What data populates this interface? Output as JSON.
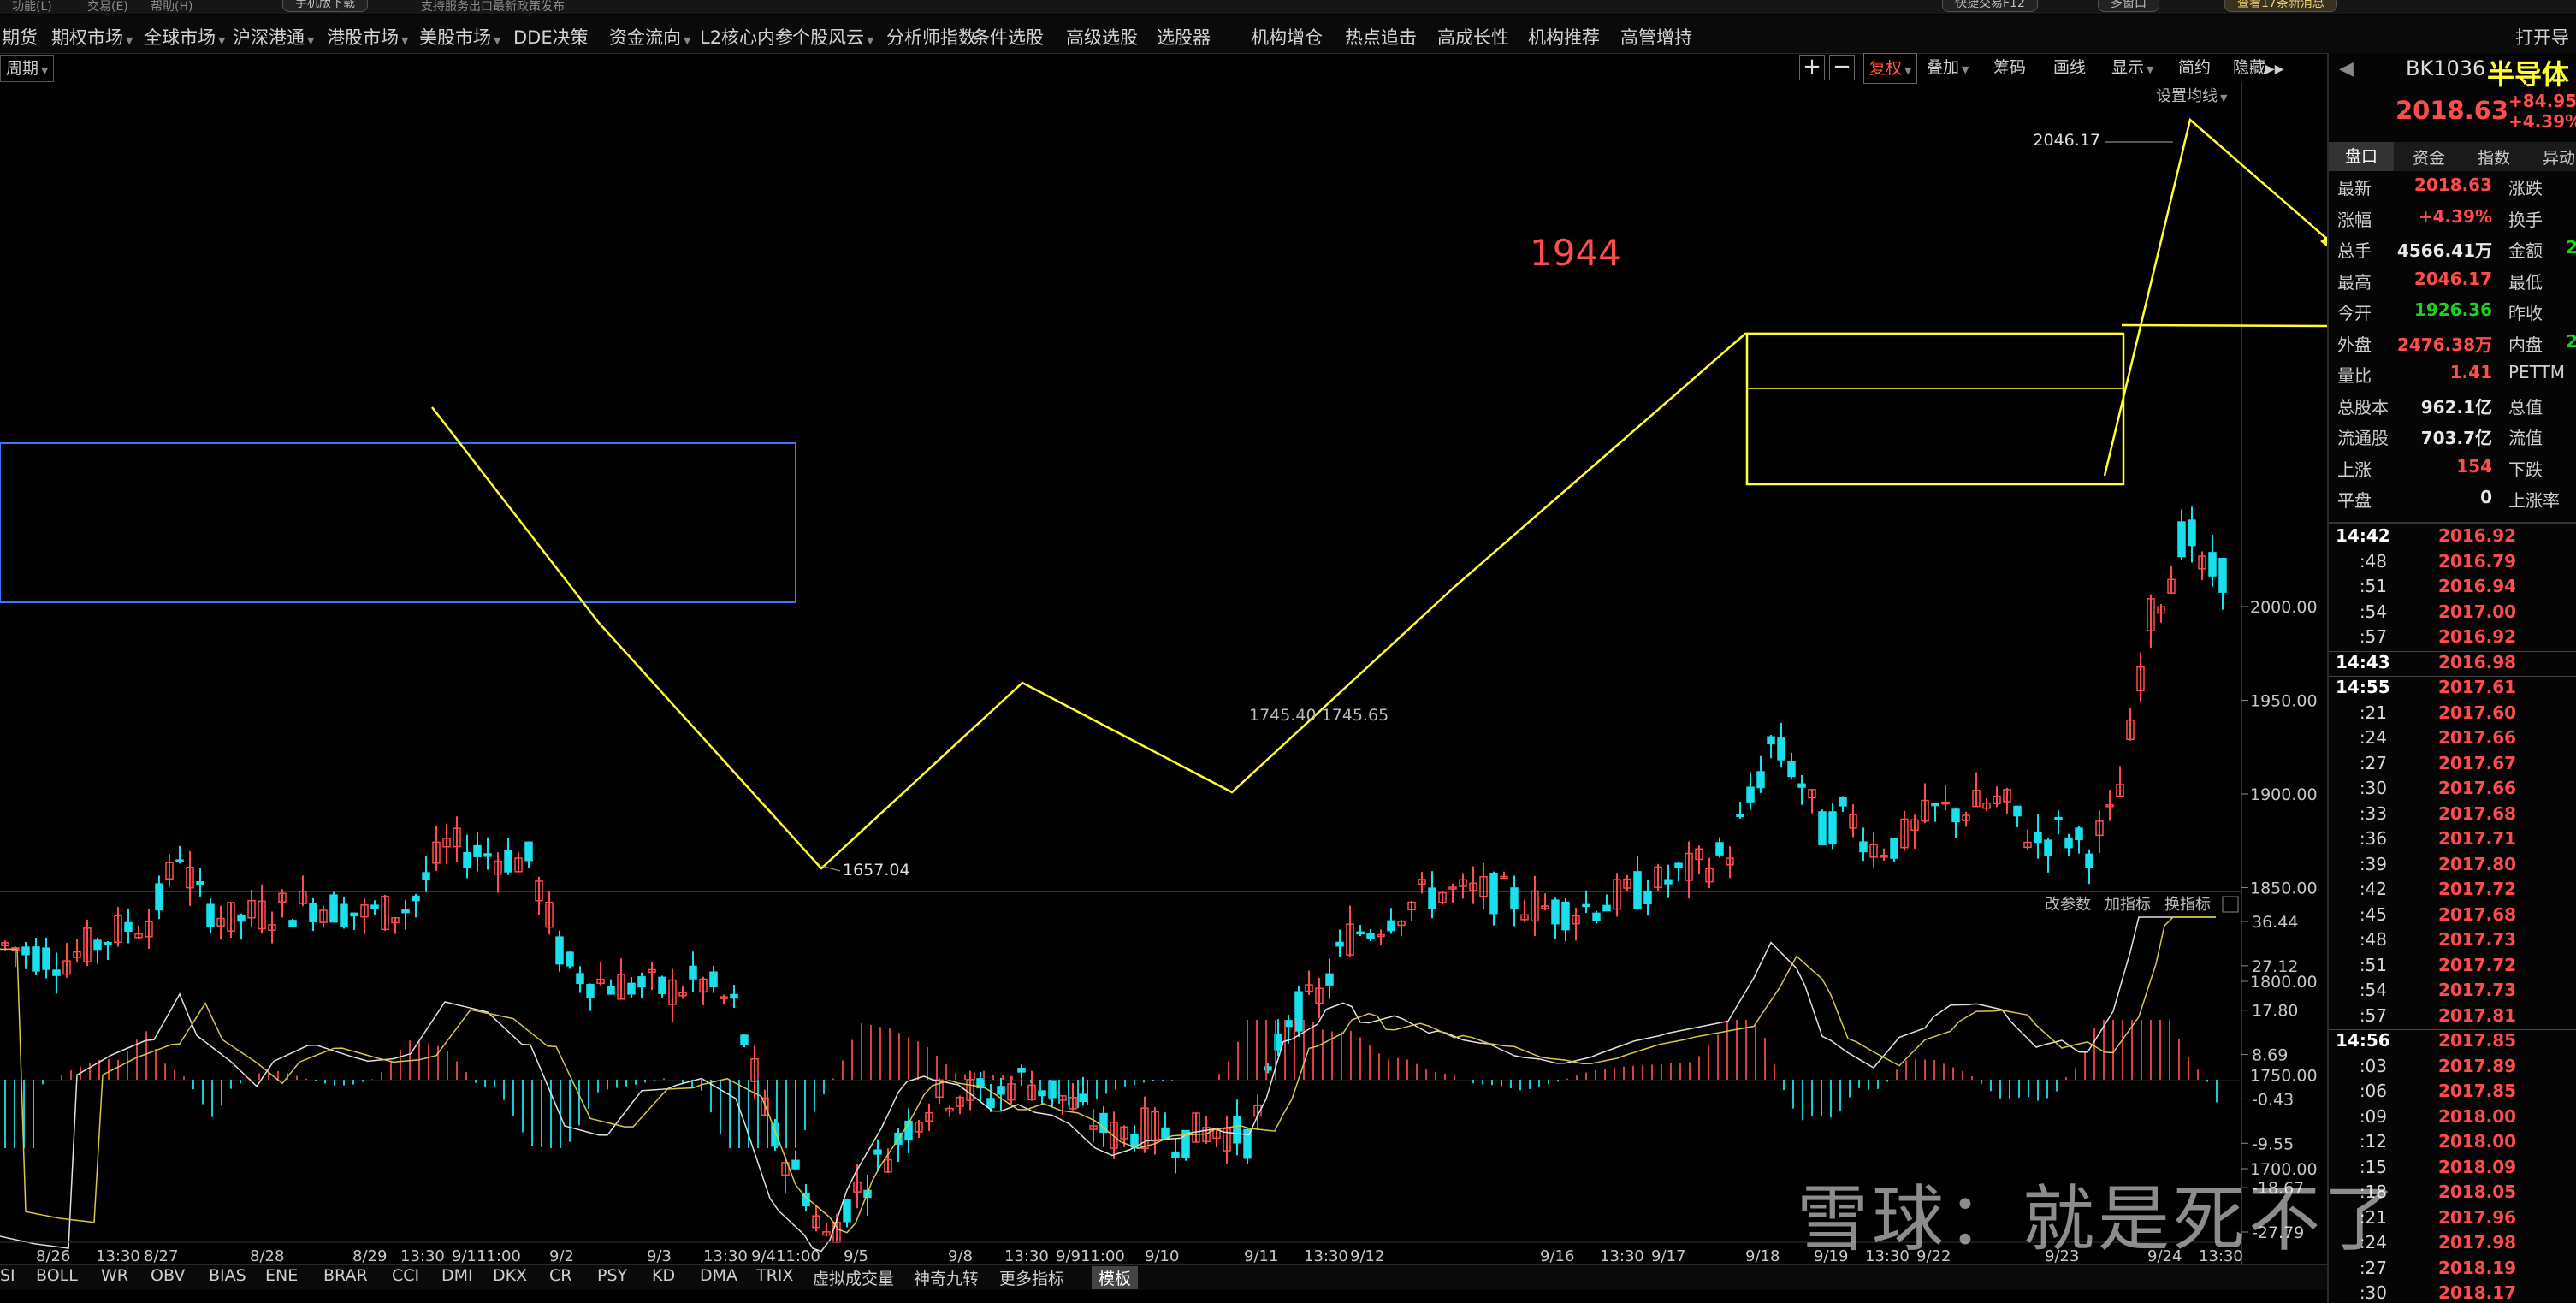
{
  "topbar": {
    "items": [
      "功能(L)",
      "交易(E)",
      "帮助(H)"
    ],
    "download": "手机版下载",
    "news": "支持服务出口最新政策发布",
    "quick": "快捷交易F12",
    "multi": "多窗口",
    "msg": "查看17条新消息"
  },
  "menu": {
    "items": [
      {
        "label": "期货",
        "dd": false
      },
      {
        "label": "期权市场",
        "dd": true
      },
      {
        "label": "全球市场",
        "dd": true
      },
      {
        "label": "沪深港通",
        "dd": true
      },
      {
        "label": "港股市场",
        "dd": true
      },
      {
        "label": "美股市场",
        "dd": true
      },
      {
        "label": "DDE决策",
        "dd": false
      },
      {
        "label": "资金流向",
        "dd": true
      },
      {
        "label": "L2核心内参",
        "dd": false
      },
      {
        "label": "个股风云",
        "dd": true
      },
      {
        "label": "分析师指数",
        "dd": false
      },
      {
        "label": "条件选股",
        "dd": false
      },
      {
        "label": "高级选股",
        "dd": false
      },
      {
        "label": "选股器",
        "dd": false
      },
      {
        "label": "机构增仓",
        "dd": false
      },
      {
        "label": "热点追击",
        "dd": false
      },
      {
        "label": "高成长性",
        "dd": false
      },
      {
        "label": "机构推荐",
        "dd": false
      },
      {
        "label": "高管增持",
        "dd": false
      }
    ],
    "right": "打开导"
  },
  "chart_controls": {
    "period": "周期",
    "plus": "+",
    "minus": "−",
    "fq": "复权",
    "add": "叠加",
    "chips": "筹码",
    "draw": "画线",
    "show": "显示",
    "simple": "简约",
    "hide": "隐藏"
  },
  "chart_header": {
    "ma_setting": "设置均线"
  },
  "annotation_big": "1944",
  "kline_labels": {
    "high_label": "2046.17",
    "low_label": "1657.04",
    "mid_label": "1745.40 1745.65"
  },
  "price_axis": [
    "2000.00",
    "1950.00",
    "1900.00",
    "1850.00",
    "1800.00",
    "1750.00",
    "1700.00"
  ],
  "macd": {
    "buttons": [
      "改参数",
      "加指标",
      "换指标"
    ],
    "axis": [
      "36.44",
      "27.12",
      "17.80",
      "8.69",
      "-0.43",
      "-9.55",
      "-18.67",
      "-27.79"
    ]
  },
  "dates": [
    "8/26",
    "13:30",
    "8/27",
    "8/28",
    "8/29",
    "13:30",
    "9/111:00",
    "9/2",
    "9/3",
    "13:30",
    "9/411:00",
    "9/5",
    "9/8",
    "13:30",
    "9/911:00",
    "9/10",
    "9/11",
    "13:30",
    "9/12",
    "9/16",
    "13:30",
    "9/17",
    "9/18",
    "9/19",
    "13:30",
    "9/22",
    "9/23",
    "9/24",
    "13:30"
  ],
  "indicator_tabs": [
    "SI",
    "BOLL",
    "WR",
    "OBV",
    "BIAS",
    "ENE",
    "BRAR",
    "CCI",
    "DMI",
    "DKX",
    "CR",
    "PSY",
    "KD",
    "DMA",
    "TRIX",
    "虚拟成交量",
    "神奇九转",
    "更多指标",
    "模板"
  ],
  "watermark": "雪球：就是死不了",
  "rpanel": {
    "code": "BK1036",
    "name": "半导体",
    "price": "2018.63",
    "chg": "+84.95",
    "pct": "+4.39%",
    "tabs": [
      "盘口",
      "资金",
      "指数",
      "异动"
    ],
    "rows": [
      {
        "l": "最新",
        "v": "2018.63",
        "vc": "#ff4d4d",
        "r": "涨跌",
        "v2": ""
      },
      {
        "l": "涨幅",
        "v": "+4.39%",
        "vc": "#ff4d4d",
        "r": "换手",
        "v2": ""
      },
      {
        "l": "总手",
        "v": "4566.41万",
        "vc": "#e8e8e8",
        "r": "金额",
        "v2": "2"
      },
      {
        "l": "最高",
        "v": "2046.17",
        "vc": "#ff4d4d",
        "r": "最低",
        "v2": ""
      },
      {
        "l": "今开",
        "v": "1926.36",
        "vc": "#19d419",
        "r": "昨收",
        "v2": ""
      },
      {
        "l": "外盘",
        "v": "2476.38万",
        "vc": "#ff4d4d",
        "r": "内盘",
        "v2": "2"
      },
      {
        "l": "量比",
        "v": "1.41",
        "vc": "#ff4d4d",
        "r": "PETTM",
        "v2": ""
      },
      {
        "l": "总股本",
        "v": "962.1亿",
        "vc": "#e8e8e8",
        "r": "总值",
        "v2": ""
      },
      {
        "l": "流通股",
        "v": "703.7亿",
        "vc": "#e8e8e8",
        "r": "流值",
        "v2": ""
      },
      {
        "l": "上涨",
        "v": "154",
        "vc": "#ff4d4d",
        "r": "下跌",
        "v2": ""
      },
      {
        "l": "平盘",
        "v": "0",
        "vc": "#e8e8e8",
        "r": "上涨率",
        "v2": ""
      }
    ],
    "ticks": [
      {
        "t": "14:42",
        "p": "2016.92",
        "bold": true
      },
      {
        "t": ":48",
        "p": "2016.79"
      },
      {
        "t": ":51",
        "p": "2016.94"
      },
      {
        "t": ":54",
        "p": "2017.00"
      },
      {
        "t": ":57",
        "p": "2016.92"
      },
      {
        "t": "14:43",
        "p": "2016.98",
        "bold": true
      },
      {
        "t": "14:55",
        "p": "2017.61",
        "bold": true
      },
      {
        "t": ":21",
        "p": "2017.60"
      },
      {
        "t": ":24",
        "p": "2017.66"
      },
      {
        "t": ":27",
        "p": "2017.67"
      },
      {
        "t": ":30",
        "p": "2017.66"
      },
      {
        "t": ":33",
        "p": "2017.68"
      },
      {
        "t": ":36",
        "p": "2017.71"
      },
      {
        "t": ":39",
        "p": "2017.80"
      },
      {
        "t": ":42",
        "p": "2017.72"
      },
      {
        "t": ":45",
        "p": "2017.68"
      },
      {
        "t": ":48",
        "p": "2017.73"
      },
      {
        "t": ":51",
        "p": "2017.72"
      },
      {
        "t": ":54",
        "p": "2017.73"
      },
      {
        "t": ":57",
        "p": "2017.81"
      },
      {
        "t": "14:56",
        "p": "2017.85",
        "bold": true
      },
      {
        "t": ":03",
        "p": "2017.89"
      },
      {
        "t": ":06",
        "p": "2017.85"
      },
      {
        "t": ":09",
        "p": "2018.00"
      },
      {
        "t": ":12",
        "p": "2018.00"
      },
      {
        "t": ":15",
        "p": "2018.09"
      },
      {
        "t": ":18",
        "p": "2018.05"
      },
      {
        "t": ":21",
        "p": "2017.96"
      },
      {
        "t": ":24",
        "p": "2017.98"
      },
      {
        "t": ":27",
        "p": "2018.19"
      },
      {
        "t": ":30",
        "p": "2018.17"
      }
    ]
  },
  "colors": {
    "up": "#ff4d4d",
    "down": "#19e0ec",
    "annotation": "#ffff33",
    "box_blue": "#3a78ff",
    "macd_up": "#d94040",
    "macd_down": "#19c9d2"
  }
}
